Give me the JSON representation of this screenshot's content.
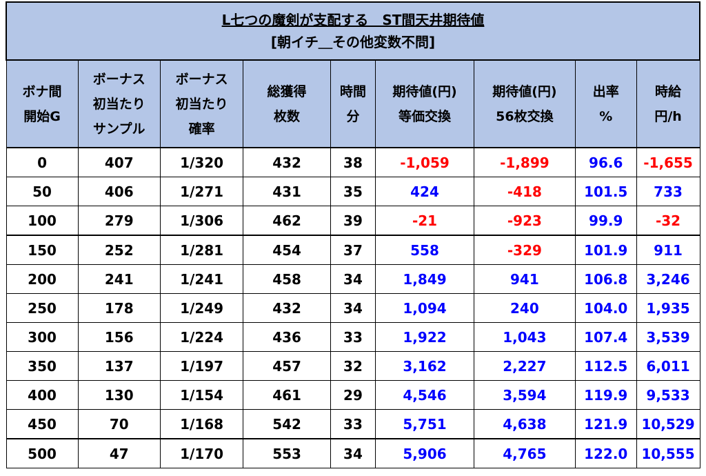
{
  "title": "L七つの魔剣が支配する　ST間天井期待値",
  "subtitle": "[朝イチ＿その他変数不問]",
  "headers": [
    [
      "ボナ間",
      "開始G"
    ],
    [
      "ボーナス",
      "初当たり",
      "サンプル"
    ],
    [
      "ボーナス",
      "初当たり",
      "確率"
    ],
    [
      "総獲得",
      "枚数"
    ],
    [
      "時間",
      "分"
    ],
    [
      "期待値(円)",
      "等価交換"
    ],
    [
      "期待値(円)",
      "56枚交換"
    ],
    [
      "出率",
      "%"
    ],
    [
      "時給",
      "円/h"
    ]
  ],
  "rows": [
    [
      "0",
      "407",
      "1/320",
      "432",
      "38",
      "-1,059",
      "-1,899",
      "96.6",
      "-1,655"
    ],
    [
      "50",
      "406",
      "1/271",
      "431",
      "35",
      "424",
      "-418",
      "101.5",
      "733"
    ],
    [
      "100",
      "279",
      "1/306",
      "462",
      "39",
      "-21",
      "-923",
      "99.9",
      "-32"
    ],
    [
      "150",
      "252",
      "1/281",
      "454",
      "37",
      "558",
      "-329",
      "101.9",
      "911"
    ],
    [
      "200",
      "241",
      "1/241",
      "458",
      "34",
      "1,849",
      "941",
      "106.8",
      "3,246"
    ],
    [
      "250",
      "178",
      "1/249",
      "432",
      "34",
      "1,094",
      "240",
      "104.0",
      "1,935"
    ],
    [
      "300",
      "156",
      "1/224",
      "436",
      "33",
      "1,922",
      "1,043",
      "107.4",
      "3,539"
    ],
    [
      "350",
      "137",
      "1/197",
      "457",
      "32",
      "3,162",
      "2,227",
      "112.5",
      "6,011"
    ],
    [
      "400",
      "130",
      "1/154",
      "461",
      "29",
      "4,546",
      "3,594",
      "119.9",
      "9,533"
    ],
    [
      "450",
      "70",
      "1/168",
      "542",
      "33",
      "5,751",
      "4,638",
      "121.9",
      "10,529"
    ],
    [
      "500",
      "47",
      "1/170",
      "553",
      "34",
      "5,906",
      "4,765",
      "122.0",
      "10,555"
    ]
  ],
  "colors": {
    "header_bg": "#b4c6e7",
    "negative": "#ff0000",
    "positive": "#0000ff"
  }
}
